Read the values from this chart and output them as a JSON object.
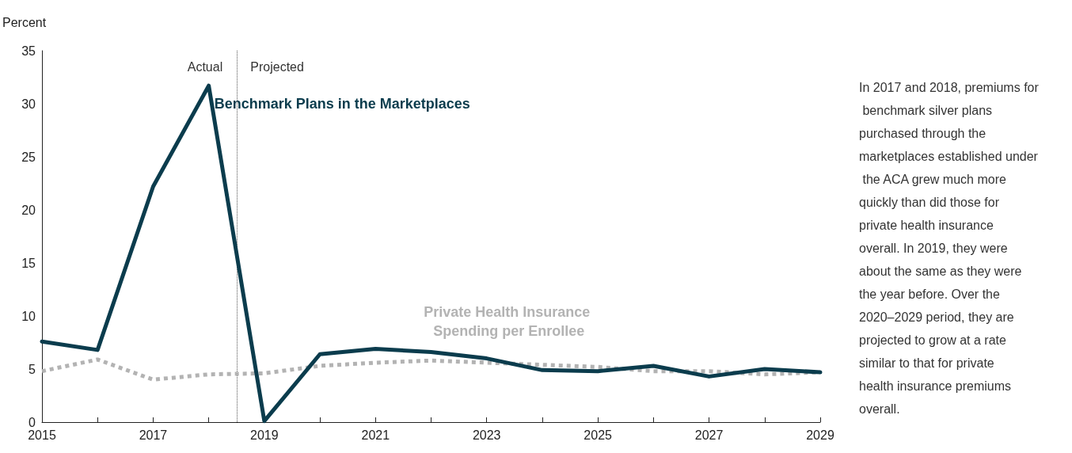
{
  "chart_data": {
    "type": "line",
    "ylabel": "Percent",
    "x": [
      2015,
      2016,
      2017,
      2018,
      2019,
      2020,
      2021,
      2022,
      2023,
      2024,
      2025,
      2026,
      2027,
      2028,
      2029
    ],
    "series": [
      {
        "name": "Benchmark Plans in the Marketplaces",
        "color": "#0b3c4d",
        "line_style": "solid",
        "values": [
          7.6,
          6.8,
          22.2,
          31.7,
          0.1,
          6.4,
          6.9,
          6.6,
          6.0,
          4.9,
          4.8,
          5.3,
          4.3,
          5.0,
          4.7
        ]
      },
      {
        "name": "Private Health Insurance Spending per Enrollee",
        "color": "#b3b3b3",
        "line_style": "dotted",
        "values": [
          4.8,
          5.9,
          4.0,
          4.5,
          4.6,
          5.3,
          5.6,
          5.8,
          5.6,
          5.4,
          5.2,
          4.8,
          4.8,
          4.5,
          4.7
        ]
      }
    ],
    "xlim": [
      2015,
      2029
    ],
    "xticks": [
      2015,
      {
        "value": 2016,
        "label": null
      },
      2017,
      {
        "value": 2018,
        "label": null
      },
      2019,
      {
        "value": 2020,
        "label": null
      },
      2021,
      {
        "value": 2022,
        "label": null
      },
      2023,
      {
        "value": 2024,
        "label": null
      },
      2025,
      {
        "value": 2026,
        "label": null
      },
      2027,
      {
        "value": 2028,
        "label": null
      },
      2029
    ],
    "ylim": [
      0,
      35
    ],
    "yticks": [
      0,
      5,
      10,
      15,
      20,
      25,
      30,
      35
    ],
    "grid": false,
    "legend": false,
    "marker": "none",
    "ref_lines": [
      {
        "axis": "x",
        "value": 2018.5,
        "label": null,
        "color": "#555555",
        "line_style": "dotted"
      }
    ],
    "annotations": [
      "Actual",
      "Projected",
      "In 2017 and 2018, premiums for benchmark silver plans purchased through the marketplaces established under the ACA grew much more quickly than did those for private health insurance overall. In 2019, they were about the same as they were the year before. Over the 2020–2029 period, they are projected to grow at a rate similar to that for private health insurance premiums overall."
    ]
  }
}
